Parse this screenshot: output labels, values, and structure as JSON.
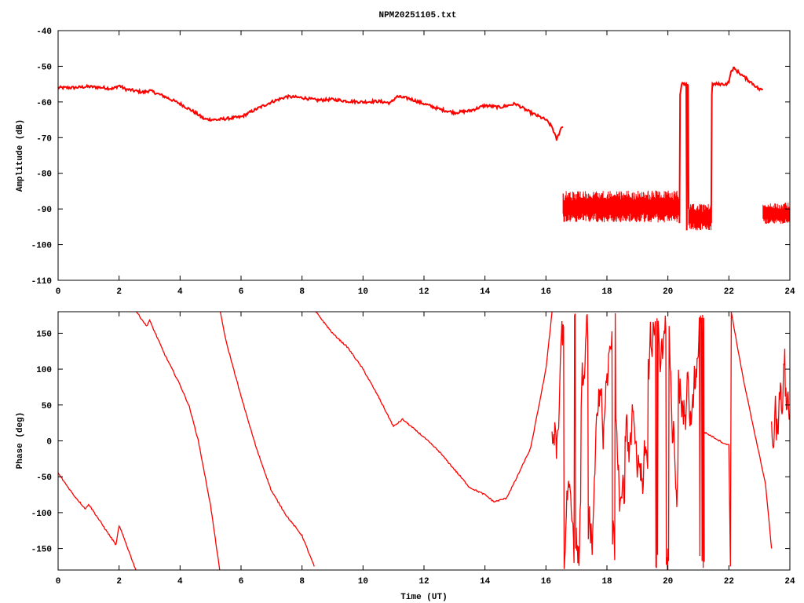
{
  "title": "NPM20251105.txt",
  "colors": {
    "series": "#ff0000",
    "axis": "#000000",
    "background": "#ffffff"
  },
  "chart_data": [
    {
      "type": "line",
      "title": "NPM20251105.txt",
      "xlabel": "",
      "ylabel": "Amplitude (dB)",
      "xlim": [
        0,
        24
      ],
      "ylim": [
        -110,
        -40
      ],
      "xticks": [
        "0",
        "2",
        "4",
        "6",
        "8",
        "10",
        "12",
        "14",
        "16",
        "18",
        "20",
        "22",
        "24"
      ],
      "yticks": [
        "-40",
        "-50",
        "-60",
        "-70",
        "-80",
        "-90",
        "-100",
        "-110"
      ],
      "grid": false,
      "segments": [
        {
          "kind": "line",
          "points": [
            [
              0,
              -56
            ],
            [
              0.5,
              -56
            ],
            [
              1,
              -55.7
            ],
            [
              1.5,
              -56
            ],
            [
              1.8,
              -56.3
            ],
            [
              2,
              -55.4
            ],
            [
              2.2,
              -56.4
            ],
            [
              2.8,
              -57.3
            ],
            [
              3,
              -56.8
            ],
            [
              3.5,
              -58.5
            ],
            [
              4,
              -60.5
            ],
            [
              4.5,
              -63
            ],
            [
              4.8,
              -64.8
            ],
            [
              5.2,
              -65
            ],
            [
              5.5,
              -64.7
            ],
            [
              6,
              -64.2
            ],
            [
              6.5,
              -62
            ],
            [
              7,
              -60
            ],
            [
              7.5,
              -58.5
            ],
            [
              8,
              -58.8
            ],
            [
              8.5,
              -59.5
            ],
            [
              9,
              -59.3
            ],
            [
              9.5,
              -59.8
            ],
            [
              10,
              -60
            ],
            [
              10.5,
              -59.8
            ],
            [
              10.9,
              -60.3
            ],
            [
              11.1,
              -58.5
            ],
            [
              11.5,
              -59
            ],
            [
              12,
              -60.5
            ],
            [
              12.5,
              -62
            ],
            [
              13,
              -63
            ],
            [
              13.5,
              -62.5
            ],
            [
              14,
              -61
            ],
            [
              14.5,
              -61.5
            ],
            [
              15,
              -60.5
            ],
            [
              15.5,
              -63
            ],
            [
              16,
              -65
            ],
            [
              16.2,
              -67
            ],
            [
              16.35,
              -70.6
            ],
            [
              16.5,
              -67.2
            ],
            [
              16.56,
              -67
            ]
          ]
        },
        {
          "kind": "noise",
          "t": [
            16.56,
            20.38
          ],
          "range": [
            -95,
            -83
          ]
        },
        {
          "kind": "line",
          "points": [
            [
              20.38,
              -94
            ],
            [
              20.4,
              -58
            ],
            [
              20.45,
              -55
            ],
            [
              20.6,
              -55
            ],
            [
              20.62,
              -96
            ],
            [
              20.64,
              -55
            ],
            [
              20.66,
              -55.5
            ],
            [
              20.68,
              -90
            ]
          ]
        },
        {
          "kind": "noise",
          "t": [
            20.68,
            21.42
          ],
          "range": [
            -97,
            -87
          ]
        },
        {
          "kind": "line",
          "points": [
            [
              21.42,
              -94
            ],
            [
              21.44,
              -58
            ],
            [
              21.46,
              -55
            ],
            [
              21.9,
              -55
            ],
            [
              22.0,
              -54.5
            ],
            [
              22.05,
              -52
            ],
            [
              22.15,
              -50.5
            ],
            [
              22.5,
              -53
            ],
            [
              22.8,
              -55
            ],
            [
              23.0,
              -56.5
            ],
            [
              23.12,
              -56.5
            ]
          ]
        },
        {
          "kind": "noise",
          "t": [
            23.12,
            24
          ],
          "range": [
            -95,
            -87
          ]
        }
      ]
    },
    {
      "type": "line",
      "title": "",
      "xlabel": "Time (UT)",
      "ylabel": "Phase (deg)",
      "xlim": [
        0,
        24
      ],
      "ylim": [
        -180,
        180
      ],
      "xticks": [
        "0",
        "2",
        "4",
        "6",
        "8",
        "10",
        "12",
        "14",
        "16",
        "18",
        "20",
        "22",
        "24"
      ],
      "yticks": [
        "150",
        "100",
        "50",
        "0",
        "-50",
        "-100",
        "-150"
      ],
      "grid": false,
      "segments": [
        {
          "kind": "line",
          "points": [
            [
              0,
              -45
            ],
            [
              0.5,
              -75
            ],
            [
              0.9,
              -95
            ],
            [
              1.0,
              -88
            ],
            [
              1.5,
              -120
            ],
            [
              1.9,
              -145
            ],
            [
              2.0,
              -118
            ],
            [
              2.2,
              -140
            ],
            [
              2.55,
              -180
            ]
          ]
        },
        {
          "kind": "line",
          "points": [
            [
              2.57,
              180
            ],
            [
              2.9,
              160
            ],
            [
              3.0,
              168
            ],
            [
              3.5,
              120
            ],
            [
              4,
              78
            ],
            [
              4.3,
              48
            ],
            [
              4.6,
              0
            ],
            [
              5.0,
              -90
            ],
            [
              5.3,
              -180
            ]
          ]
        },
        {
          "kind": "line",
          "points": [
            [
              5.32,
              180
            ],
            [
              5.5,
              140
            ],
            [
              6,
              62
            ],
            [
              6.5,
              -10
            ],
            [
              7,
              -70
            ],
            [
              7.5,
              -105
            ],
            [
              8,
              -132
            ],
            [
              8.4,
              -175
            ]
          ]
        },
        {
          "kind": "line",
          "points": [
            [
              8.45,
              180
            ],
            [
              9,
              150
            ],
            [
              9.5,
              130
            ],
            [
              10,
              100
            ],
            [
              10.5,
              62
            ],
            [
              11,
              20
            ],
            [
              11.3,
              30
            ],
            [
              12,
              5
            ],
            [
              12.5,
              -15
            ],
            [
              13,
              -40
            ],
            [
              13.5,
              -65
            ],
            [
              14,
              -75
            ],
            [
              14.3,
              -85
            ],
            [
              14.7,
              -80
            ],
            [
              15,
              -55
            ],
            [
              15.5,
              -10
            ],
            [
              16.0,
              100
            ],
            [
              16.2,
              180
            ]
          ]
        },
        {
          "kind": "noise-walk",
          "t": [
            16.2,
            21.2
          ],
          "range": [
            -180,
            180
          ]
        },
        {
          "kind": "line",
          "points": [
            [
              21.2,
              12
            ],
            [
              21.5,
              5
            ],
            [
              21.9,
              -5
            ],
            [
              22.0,
              -5
            ],
            [
              22.05,
              -175
            ],
            [
              22.08,
              180
            ],
            [
              22.2,
              150
            ],
            [
              22.5,
              80
            ],
            [
              23,
              -20
            ],
            [
              23.2,
              -60
            ],
            [
              23.4,
              -150
            ]
          ]
        },
        {
          "kind": "noise-walk",
          "t": [
            23.4,
            24
          ],
          "range": [
            -180,
            180
          ]
        }
      ]
    }
  ]
}
